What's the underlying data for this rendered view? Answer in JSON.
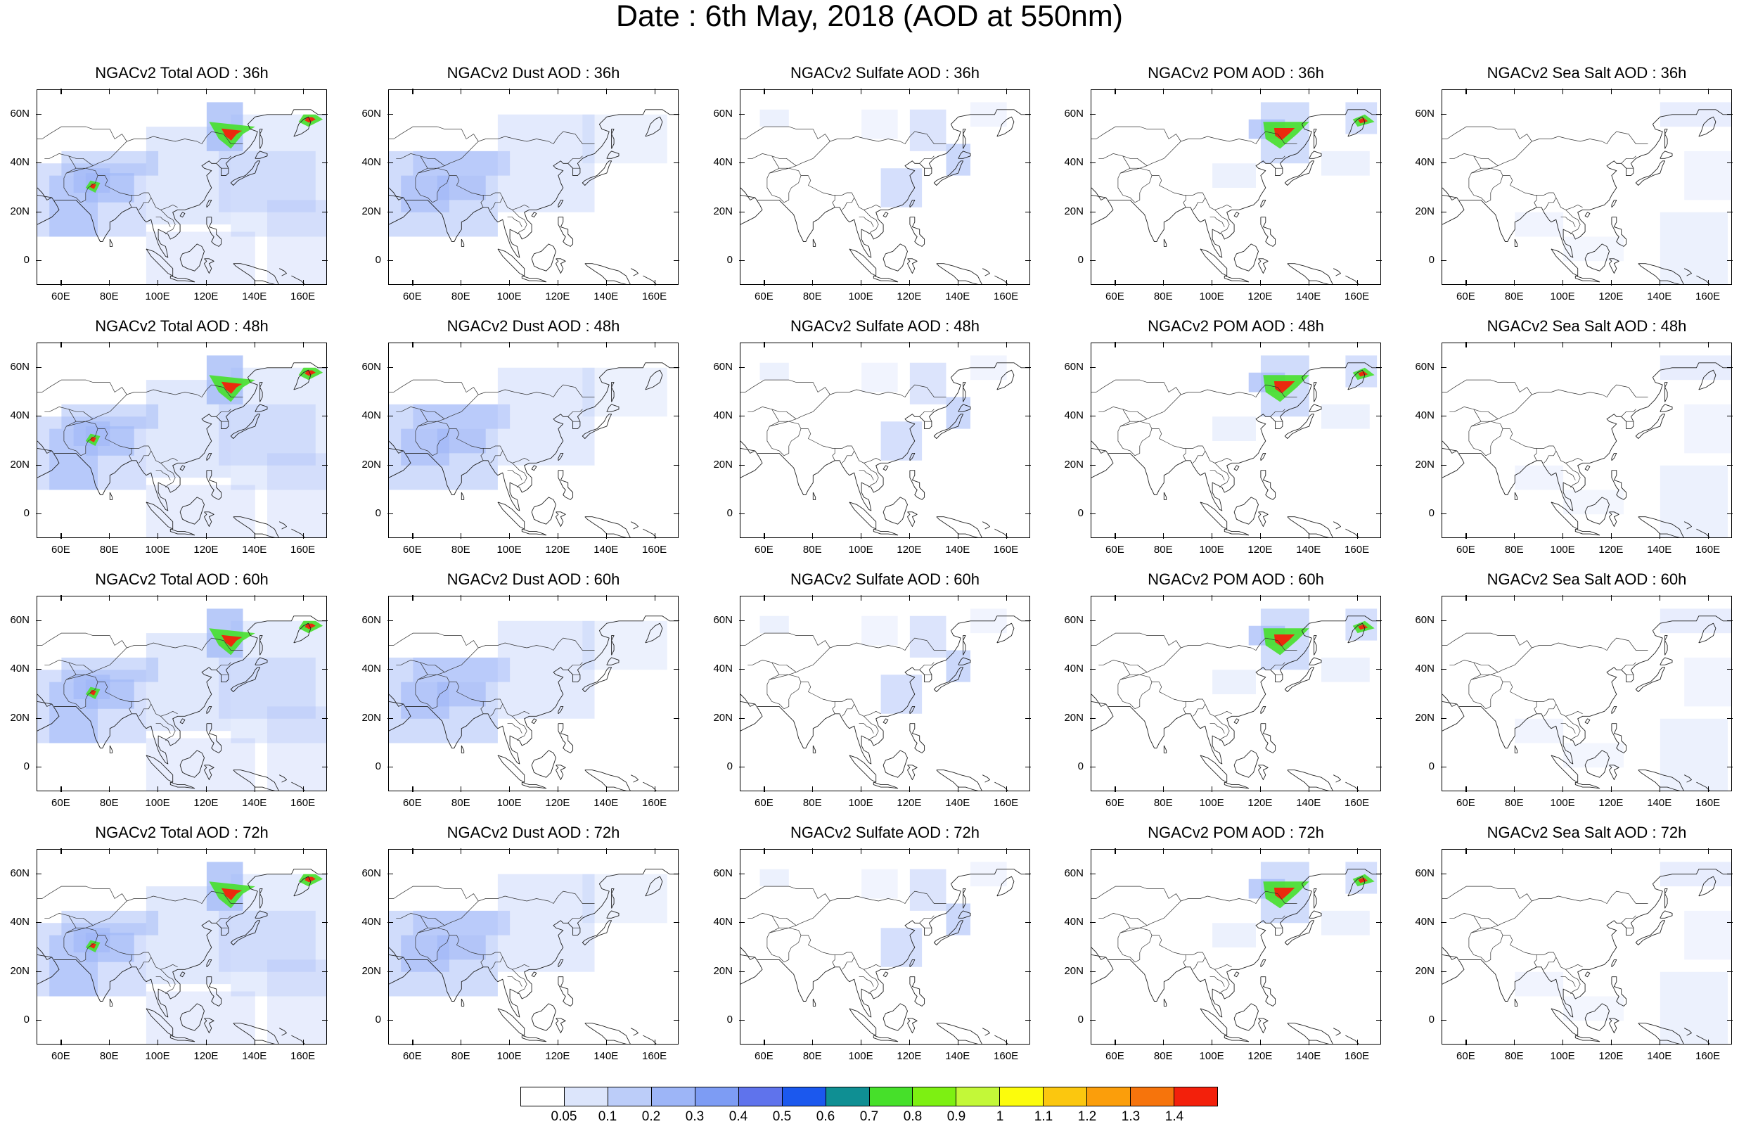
{
  "title": "Date : 6th May, 2018 (AOD at 550nm)",
  "panels": [
    {
      "title": "NGACv2 Total AOD : 36h",
      "species": "total",
      "hour": "36h"
    },
    {
      "title": "NGACv2 Dust AOD : 36h",
      "species": "dust",
      "hour": "36h"
    },
    {
      "title": "NGACv2 Sulfate AOD : 36h",
      "species": "sulfate",
      "hour": "36h"
    },
    {
      "title": "NGACv2 POM AOD : 36h",
      "species": "pom",
      "hour": "36h"
    },
    {
      "title": "NGACv2 Sea Salt AOD : 36h",
      "species": "seasalt",
      "hour": "36h"
    },
    {
      "title": "NGACv2 Total AOD : 48h",
      "species": "total",
      "hour": "48h"
    },
    {
      "title": "NGACv2 Dust AOD : 48h",
      "species": "dust",
      "hour": "48h"
    },
    {
      "title": "NGACv2 Sulfate AOD : 48h",
      "species": "sulfate",
      "hour": "48h"
    },
    {
      "title": "NGACv2 POM AOD : 48h",
      "species": "pom",
      "hour": "48h"
    },
    {
      "title": "NGACv2 Sea Salt AOD : 48h",
      "species": "seasalt",
      "hour": "48h"
    },
    {
      "title": "NGACv2 Total AOD : 60h",
      "species": "total",
      "hour": "60h"
    },
    {
      "title": "NGACv2 Dust AOD : 60h",
      "species": "dust",
      "hour": "60h"
    },
    {
      "title": "NGACv2 Sulfate AOD : 60h",
      "species": "sulfate",
      "hour": "60h"
    },
    {
      "title": "NGACv2 POM AOD : 60h",
      "species": "pom",
      "hour": "60h"
    },
    {
      "title": "NGACv2 Sea Salt AOD : 60h",
      "species": "seasalt",
      "hour": "60h"
    },
    {
      "title": "NGACv2 Total AOD : 72h",
      "species": "total",
      "hour": "72h"
    },
    {
      "title": "NGACv2 Dust AOD : 72h",
      "species": "dust",
      "hour": "72h"
    },
    {
      "title": "NGACv2 Sulfate AOD : 72h",
      "species": "sulfate",
      "hour": "72h"
    },
    {
      "title": "NGACv2 POM AOD : 72h",
      "species": "pom",
      "hour": "72h"
    },
    {
      "title": "NGACv2 Sea Salt  AOD : 72h",
      "species": "seasalt",
      "hour": "72h"
    }
  ],
  "map": {
    "lon_range": [
      50,
      170
    ],
    "lat_range": [
      -10,
      70
    ],
    "lon_ticks": [
      60,
      80,
      100,
      120,
      140,
      160
    ],
    "lon_labels": [
      "60E",
      "80E",
      "100E",
      "120E",
      "140E",
      "160E"
    ],
    "lat_ticks": [
      60,
      40,
      20,
      0
    ],
    "lat_labels": [
      "60N",
      "40N",
      "20N",
      "0"
    ]
  },
  "colorbar": {
    "labels": [
      "0.05",
      "0.1",
      "0.2",
      "0.3",
      "0.4",
      "0.5",
      "0.6",
      "0.7",
      "0.8",
      "0.9",
      "1",
      "1.1",
      "1.2",
      "1.3",
      "1.4"
    ],
    "colors": [
      "#ffffff",
      "#dce5fb",
      "#bccdf9",
      "#9db5f7",
      "#7d9cf4",
      "#5f73ec",
      "#1b58ee",
      "#0f8f93",
      "#46e02a",
      "#7df012",
      "#c3f838",
      "#fcfc0c",
      "#fbc70f",
      "#fb9e0b",
      "#f6740c",
      "#f3200b"
    ]
  }
}
